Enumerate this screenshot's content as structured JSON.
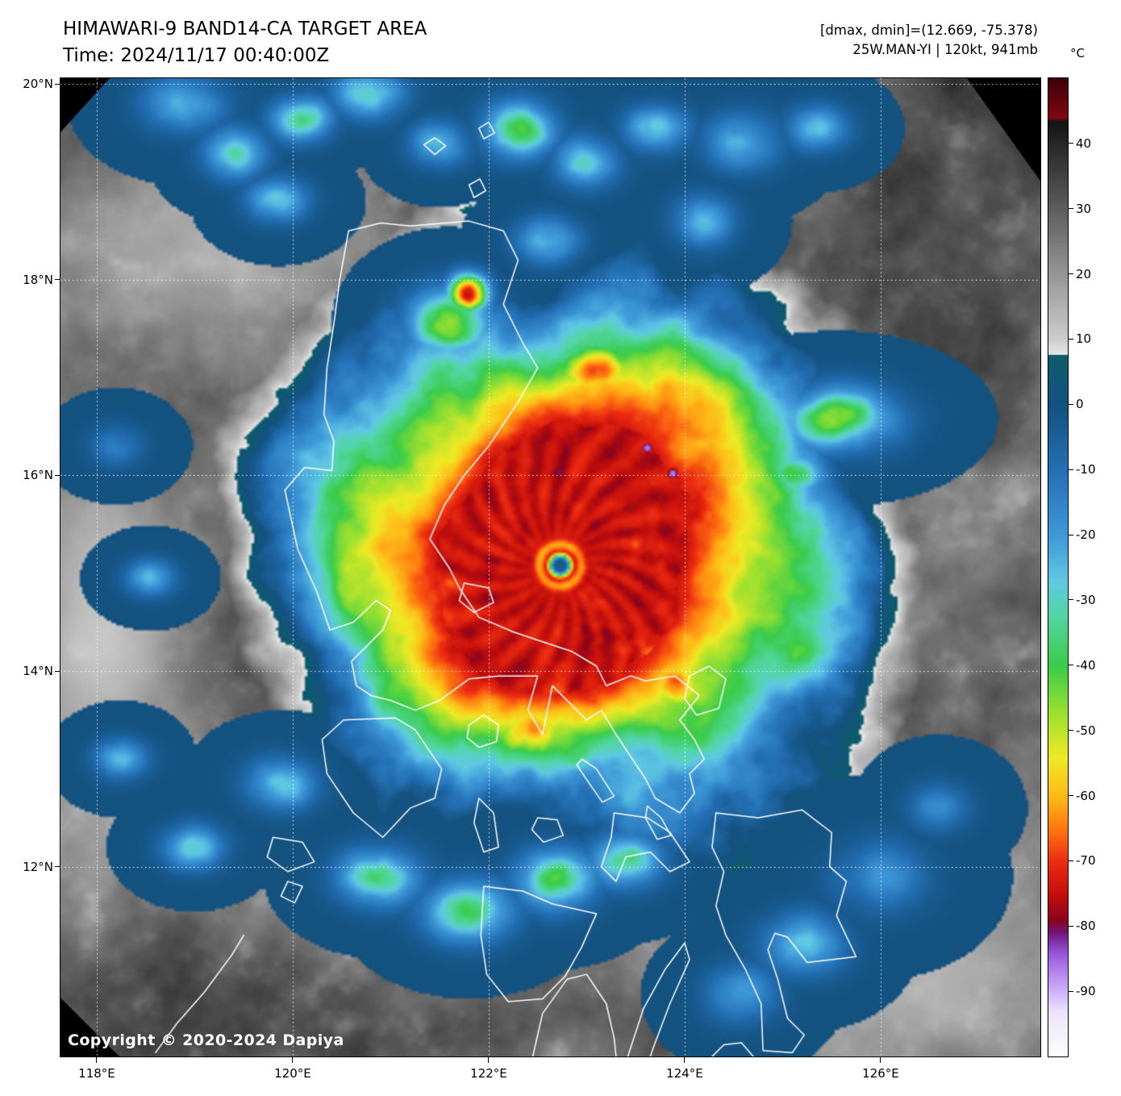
{
  "header": {
    "title": "HIMAWARI-9 BAND14-CA TARGET AREA",
    "time_line": "Time: 2024/11/17 00:40:00Z",
    "dmax_dmin": "[dmax, dmin]=(12.669, -75.378)",
    "storm_line": "25W.MAN-YI | 120kt, 941mb"
  },
  "colorbar": {
    "unit": "°C",
    "range": [
      -100,
      50
    ],
    "tick_values": [
      40,
      30,
      20,
      10,
      0,
      -10,
      -20,
      -30,
      -40,
      -50,
      -60,
      -70,
      -80,
      -90
    ],
    "stops": [
      [
        50,
        62,
        0,
        8
      ],
      [
        44,
        128,
        8,
        18
      ],
      [
        43.4,
        20,
        20,
        20
      ],
      [
        10,
        205,
        205,
        205
      ],
      [
        7.6,
        232,
        232,
        232
      ],
      [
        7.5,
        14,
        92,
        108
      ],
      [
        0,
        20,
        82,
        128
      ],
      [
        -10,
        36,
        112,
        182
      ],
      [
        -20,
        62,
        152,
        216
      ],
      [
        -27,
        96,
        200,
        228
      ],
      [
        -32,
        84,
        214,
        168
      ],
      [
        -40,
        58,
        204,
        74
      ],
      [
        -47,
        152,
        224,
        48
      ],
      [
        -54,
        238,
        234,
        36
      ],
      [
        -60,
        255,
        188,
        24
      ],
      [
        -65,
        255,
        120,
        16
      ],
      [
        -70,
        236,
        44,
        18
      ],
      [
        -75,
        196,
        16,
        12
      ],
      [
        -79,
        138,
        4,
        28
      ],
      [
        -81,
        112,
        22,
        122
      ],
      [
        -84,
        152,
        84,
        216
      ],
      [
        -89,
        198,
        162,
        250
      ],
      [
        -93,
        236,
        226,
        255
      ],
      [
        -100,
        255,
        255,
        255
      ]
    ]
  },
  "axes": {
    "lon_range": [
      117.63,
      127.63
    ],
    "lat_range": [
      10.06,
      20.06
    ],
    "lat_ticks": [
      [
        20,
        "20°N"
      ],
      [
        18,
        "18°N"
      ],
      [
        16,
        "16°N"
      ],
      [
        14,
        "14°N"
      ],
      [
        12,
        "12°N"
      ]
    ],
    "lon_ticks": [
      [
        118,
        "118°E"
      ],
      [
        120,
        "120°E"
      ],
      [
        122,
        "122°E"
      ],
      [
        124,
        "124°E"
      ],
      [
        126,
        "126°E"
      ]
    ]
  },
  "map": {
    "copyright": "Copyright © 2020-2024 Dapiya",
    "storm_center": [
      122.73,
      15.08
    ],
    "data_voids": [
      [
        [
          0.925,
          0
        ],
        [
          1,
          0
        ],
        [
          1,
          0.105
        ]
      ],
      [
        [
          0,
          0
        ],
        [
          0.05,
          0
        ],
        [
          0,
          0.055
        ]
      ],
      [
        [
          0,
          0.94
        ],
        [
          0,
          1
        ],
        [
          0.06,
          1
        ]
      ]
    ],
    "render": {
      "core_radius": 1.34,
      "falloff_slope": 44,
      "eye_radius": 0.155,
      "cold_specks": [
        [
          123.62,
          16.28
        ],
        [
          123.88,
          16.02
        ]
      ],
      "warm_sheets": [
        [
          118.05,
          14.4,
          0.9,
          2.0,
          0.85
        ],
        [
          126.5,
          10.9,
          1.3,
          1.0,
          0.7
        ],
        [
          119.2,
          18.4,
          1.4,
          1.0,
          0.5
        ]
      ],
      "cold_blobs": [
        [
          121.78,
          17.85,
          0.2,
          0.2,
          -74
        ],
        [
          121.6,
          17.58,
          0.4,
          0.32,
          -50
        ],
        [
          125.55,
          16.58,
          0.55,
          0.3,
          -47
        ],
        [
          125.1,
          16.02,
          0.32,
          0.22,
          -38
        ],
        [
          123.85,
          16.55,
          0.52,
          0.38,
          -58
        ],
        [
          123.1,
          17.05,
          0.55,
          0.35,
          -56
        ],
        [
          124.45,
          15.95,
          0.42,
          0.3,
          -55
        ],
        [
          123.85,
          13.85,
          0.45,
          0.35,
          -60
        ],
        [
          122.4,
          13.35,
          0.5,
          0.35,
          -62
        ],
        [
          118.55,
          14.95,
          0.24,
          0.18,
          -22
        ],
        [
          118.25,
          13.1,
          0.26,
          0.2,
          -24
        ],
        [
          119.0,
          12.2,
          0.3,
          0.22,
          -30
        ],
        [
          118.2,
          16.3,
          0.26,
          0.2,
          -18
        ],
        [
          119.4,
          19.3,
          0.3,
          0.25,
          -30
        ],
        [
          120.1,
          19.65,
          0.3,
          0.22,
          -35
        ],
        [
          120.78,
          19.9,
          0.35,
          0.25,
          -30
        ],
        [
          121.5,
          19.4,
          0.28,
          0.22,
          -28
        ],
        [
          122.3,
          19.55,
          0.35,
          0.28,
          -38
        ],
        [
          123.0,
          19.2,
          0.3,
          0.25,
          -30
        ],
        [
          123.7,
          19.55,
          0.3,
          0.22,
          -32
        ],
        [
          124.6,
          19.4,
          0.35,
          0.28,
          -25
        ],
        [
          125.35,
          19.55,
          0.3,
          0.22,
          -22
        ],
        [
          119.85,
          18.8,
          0.3,
          0.22,
          -26
        ],
        [
          126.0,
          11.9,
          0.45,
          0.35,
          -20
        ],
        [
          125.2,
          11.2,
          0.4,
          0.3,
          -26
        ],
        [
          124.6,
          10.7,
          0.35,
          0.28,
          -22
        ],
        [
          126.6,
          12.6,
          0.3,
          0.25,
          -16
        ],
        [
          120.9,
          11.9,
          0.4,
          0.28,
          -38
        ],
        [
          121.8,
          11.55,
          0.45,
          0.3,
          -36
        ],
        [
          122.7,
          11.85,
          0.4,
          0.3,
          -40
        ],
        [
          123.4,
          12.05,
          0.35,
          0.28,
          -34
        ],
        [
          119.9,
          12.85,
          0.35,
          0.25,
          -28
        ],
        [
          118.9,
          19.8,
          0.4,
          0.28,
          -25
        ],
        [
          122.6,
          18.4,
          0.3,
          0.22,
          -30
        ],
        [
          124.2,
          18.6,
          0.3,
          0.25,
          -24
        ]
      ]
    },
    "coastlines": [
      [
        [
          120.57,
          18.5
        ],
        [
          120.9,
          18.58
        ],
        [
          121.2,
          18.55
        ],
        [
          121.8,
          18.6
        ],
        [
          122.15,
          18.5
        ],
        [
          122.3,
          18.2
        ],
        [
          122.15,
          17.75
        ],
        [
          122.35,
          17.35
        ],
        [
          122.5,
          17.1
        ],
        [
          122.3,
          16.75
        ],
        [
          122.0,
          16.3
        ],
        [
          121.75,
          16.0
        ],
        [
          121.55,
          15.7
        ],
        [
          121.4,
          15.35
        ],
        [
          121.6,
          15.05
        ],
        [
          121.7,
          14.85
        ],
        [
          121.9,
          14.55
        ],
        [
          122.25,
          14.4
        ],
        [
          122.55,
          14.3
        ],
        [
          122.85,
          14.2
        ],
        [
          123.1,
          14.05
        ],
        [
          123.2,
          13.85
        ],
        [
          123.45,
          13.95
        ],
        [
          123.6,
          13.9
        ],
        [
          123.9,
          13.95
        ],
        [
          124.15,
          13.75
        ],
        [
          123.95,
          13.5
        ],
        [
          124.1,
          13.3
        ],
        [
          124.2,
          13.1
        ],
        [
          124.05,
          12.95
        ],
        [
          124.1,
          12.75
        ],
        [
          123.95,
          12.55
        ],
        [
          123.7,
          12.7
        ],
        [
          123.6,
          12.9
        ],
        [
          123.3,
          13.35
        ],
        [
          123.15,
          13.6
        ],
        [
          123.0,
          13.5
        ],
        [
          122.65,
          13.85
        ],
        [
          122.55,
          13.35
        ],
        [
          122.4,
          13.6
        ],
        [
          122.5,
          13.95
        ],
        [
          122.1,
          13.95
        ],
        [
          121.8,
          13.92
        ],
        [
          121.5,
          13.7
        ],
        [
          121.25,
          13.6
        ],
        [
          121.0,
          13.7
        ],
        [
          120.8,
          13.75
        ],
        [
          120.65,
          13.85
        ],
        [
          120.6,
          14.1
        ],
        [
          120.92,
          14.42
        ],
        [
          121.0,
          14.62
        ],
        [
          120.85,
          14.72
        ],
        [
          120.62,
          14.5
        ],
        [
          120.38,
          14.42
        ],
        [
          120.25,
          14.8
        ],
        [
          120.05,
          15.25
        ],
        [
          119.92,
          15.85
        ],
        [
          120.12,
          16.08
        ],
        [
          120.4,
          16.05
        ],
        [
          120.42,
          16.35
        ],
        [
          120.32,
          16.62
        ],
        [
          120.35,
          17.1
        ],
        [
          120.42,
          17.55
        ],
        [
          120.48,
          18.0
        ],
        [
          120.57,
          18.5
        ]
      ],
      [
        [
          120.52,
          13.5
        ],
        [
          121.05,
          13.52
        ],
        [
          121.25,
          13.4
        ],
        [
          121.52,
          13.0
        ],
        [
          121.45,
          12.7
        ],
        [
          121.2,
          12.6
        ],
        [
          120.92,
          12.3
        ],
        [
          120.62,
          12.55
        ],
        [
          120.35,
          12.95
        ],
        [
          120.3,
          13.3
        ],
        [
          120.52,
          13.5
        ]
      ],
      [
        [
          121.8,
          13.45
        ],
        [
          121.95,
          13.55
        ],
        [
          122.1,
          13.45
        ],
        [
          122.08,
          13.28
        ],
        [
          121.9,
          13.22
        ],
        [
          121.78,
          13.32
        ],
        [
          121.8,
          13.45
        ]
      ],
      [
        [
          121.75,
          14.9
        ],
        [
          122.0,
          14.85
        ],
        [
          122.05,
          14.7
        ],
        [
          121.85,
          14.6
        ],
        [
          121.7,
          14.72
        ],
        [
          121.75,
          14.9
        ]
      ],
      [
        [
          124.05,
          13.95
        ],
        [
          124.25,
          14.05
        ],
        [
          124.42,
          13.92
        ],
        [
          124.35,
          13.62
        ],
        [
          124.12,
          13.55
        ],
        [
          124.0,
          13.72
        ],
        [
          124.05,
          13.95
        ]
      ],
      [
        [
          122.95,
          13.1
        ],
        [
          123.1,
          13.0
        ],
        [
          123.28,
          12.72
        ],
        [
          123.16,
          12.66
        ],
        [
          122.98,
          12.92
        ],
        [
          122.9,
          13.04
        ],
        [
          122.95,
          13.1
        ]
      ],
      [
        [
          123.62,
          12.62
        ],
        [
          123.76,
          12.5
        ],
        [
          123.86,
          12.32
        ],
        [
          123.72,
          12.28
        ],
        [
          123.6,
          12.5
        ],
        [
          123.62,
          12.62
        ]
      ],
      [
        [
          123.28,
          12.55
        ],
        [
          123.62,
          12.5
        ],
        [
          123.85,
          12.35
        ],
        [
          124.05,
          12.05
        ],
        [
          123.85,
          11.95
        ],
        [
          123.65,
          12.15
        ],
        [
          123.4,
          12.1
        ],
        [
          123.3,
          11.85
        ],
        [
          123.15,
          12.0
        ],
        [
          123.25,
          12.3
        ],
        [
          123.28,
          12.55
        ]
      ],
      [
        [
          124.32,
          12.55
        ],
        [
          124.75,
          12.5
        ],
        [
          125.2,
          12.58
        ],
        [
          125.5,
          12.35
        ],
        [
          125.48,
          12.0
        ],
        [
          125.65,
          11.85
        ],
        [
          125.55,
          11.5
        ],
        [
          125.75,
          11.08
        ],
        [
          125.25,
          11.02
        ],
        [
          125.05,
          11.28
        ],
        [
          124.92,
          11.32
        ],
        [
          124.85,
          11.15
        ],
        [
          124.95,
          10.85
        ],
        [
          125.05,
          10.45
        ],
        [
          125.22,
          10.28
        ],
        [
          125.1,
          10.1
        ],
        [
          124.8,
          10.12
        ],
        [
          124.78,
          10.6
        ],
        [
          124.62,
          10.95
        ],
        [
          124.42,
          11.3
        ],
        [
          124.32,
          11.6
        ],
        [
          124.4,
          11.95
        ],
        [
          124.28,
          12.2
        ],
        [
          124.32,
          12.55
        ]
      ],
      [
        [
          121.95,
          11.8
        ],
        [
          122.35,
          11.75
        ],
        [
          122.65,
          11.62
        ],
        [
          123.1,
          11.52
        ],
        [
          122.95,
          11.18
        ],
        [
          122.78,
          10.88
        ],
        [
          122.55,
          10.65
        ],
        [
          122.2,
          10.62
        ],
        [
          121.98,
          10.9
        ],
        [
          121.92,
          11.3
        ],
        [
          121.95,
          11.8
        ]
      ],
      [
        [
          122.45,
          10.06
        ],
        [
          122.55,
          10.5
        ],
        [
          122.8,
          10.85
        ],
        [
          123.0,
          10.9
        ],
        [
          123.2,
          10.6
        ],
        [
          123.28,
          10.25
        ],
        [
          123.3,
          10.06
        ]
      ],
      [
        [
          123.42,
          10.06
        ],
        [
          123.58,
          10.55
        ],
        [
          123.8,
          10.95
        ],
        [
          124.0,
          11.22
        ],
        [
          124.05,
          11.05
        ],
        [
          123.85,
          10.6
        ],
        [
          123.68,
          10.15
        ],
        [
          123.65,
          10.06
        ]
      ],
      [
        [
          124.28,
          10.06
        ],
        [
          124.4,
          10.18
        ],
        [
          124.58,
          10.2
        ],
        [
          124.7,
          10.06
        ]
      ],
      [
        [
          121.9,
          12.7
        ],
        [
          122.05,
          12.55
        ],
        [
          122.1,
          12.2
        ],
        [
          121.95,
          12.15
        ],
        [
          121.85,
          12.45
        ],
        [
          121.9,
          12.7
        ]
      ],
      [
        [
          122.5,
          12.5
        ],
        [
          122.7,
          12.48
        ],
        [
          122.76,
          12.32
        ],
        [
          122.56,
          12.25
        ],
        [
          122.44,
          12.38
        ],
        [
          122.5,
          12.5
        ]
      ],
      [
        [
          119.8,
          12.3
        ],
        [
          120.1,
          12.25
        ],
        [
          120.22,
          12.05
        ],
        [
          119.95,
          11.95
        ],
        [
          119.74,
          12.1
        ],
        [
          119.8,
          12.3
        ]
      ],
      [
        [
          119.95,
          11.85
        ],
        [
          120.1,
          11.8
        ],
        [
          120.02,
          11.63
        ],
        [
          119.88,
          11.7
        ],
        [
          119.95,
          11.85
        ]
      ],
      [
        [
          119.5,
          11.3
        ],
        [
          119.38,
          11.1
        ],
        [
          119.1,
          10.72
        ],
        [
          118.82,
          10.4
        ],
        [
          118.6,
          10.1
        ]
      ],
      [
        [
          121.34,
          19.38
        ],
        [
          121.45,
          19.45
        ],
        [
          121.56,
          19.37
        ],
        [
          121.45,
          19.28
        ],
        [
          121.34,
          19.38
        ]
      ],
      [
        [
          121.8,
          18.97
        ],
        [
          121.91,
          19.03
        ],
        [
          121.97,
          18.91
        ],
        [
          121.85,
          18.84
        ],
        [
          121.8,
          18.97
        ]
      ],
      [
        [
          121.9,
          19.55
        ],
        [
          122.0,
          19.61
        ],
        [
          122.06,
          19.5
        ],
        [
          121.95,
          19.44
        ],
        [
          121.9,
          19.55
        ]
      ]
    ]
  }
}
